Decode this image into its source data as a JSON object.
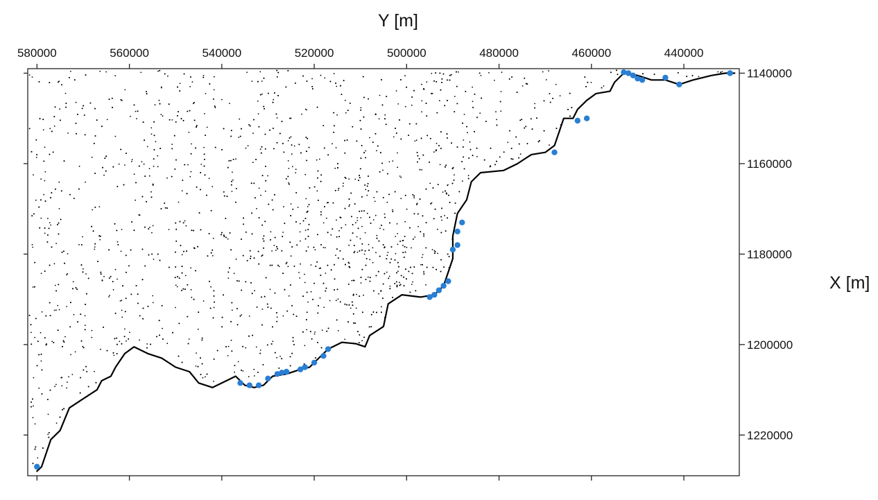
{
  "chart_data": {
    "type": "scatter",
    "title": "",
    "xlabel": "Y [m]",
    "ylabel": "X [m]",
    "x_axis_position": "top",
    "y_axis_position": "right",
    "x_reversed": true,
    "y_reversed": true,
    "xlim": [
      582000,
      428000
    ],
    "ylim": [
      1229000,
      1139000
    ],
    "x_ticks": [
      580000,
      560000,
      540000,
      520000,
      500000,
      480000,
      460000,
      440000
    ],
    "x_tick_labels": [
      "580000",
      "560000",
      "540000",
      "520000",
      "500000",
      "480000",
      "460000",
      "440000"
    ],
    "y_ticks": [
      1140000,
      1160000,
      1180000,
      1200000,
      1220000
    ],
    "y_tick_labels": [
      "1140000",
      "1160000",
      "1180000",
      "1200000",
      "1220000"
    ],
    "grid": false,
    "legend": "none",
    "colors": {
      "mesh_points": "#000000",
      "coastline": "#000000",
      "boundary_nodes": "#2a7fd4",
      "frame": "#222222"
    },
    "mesh_density": "denser near Y 500000, X 1165000-1200000",
    "coastline": {
      "name": "",
      "points": [
        [
          580000,
          1228000
        ],
        [
          579000,
          1227000
        ],
        [
          577000,
          1221000
        ],
        [
          575000,
          1219000
        ],
        [
          573000,
          1214000
        ],
        [
          570000,
          1212000
        ],
        [
          567000,
          1210000
        ],
        [
          566000,
          1208000
        ],
        [
          564000,
          1207000
        ],
        [
          563000,
          1205000
        ],
        [
          561000,
          1202000
        ],
        [
          559000,
          1200500
        ],
        [
          556000,
          1202000
        ],
        [
          553000,
          1203000
        ],
        [
          550000,
          1205000
        ],
        [
          547000,
          1206000
        ],
        [
          545000,
          1208500
        ],
        [
          542000,
          1209500
        ],
        [
          539000,
          1208000
        ],
        [
          537000,
          1207000
        ],
        [
          535000,
          1209000
        ],
        [
          533000,
          1209500
        ],
        [
          531000,
          1209000
        ],
        [
          529000,
          1207000
        ],
        [
          526000,
          1206500
        ],
        [
          523000,
          1205500
        ],
        [
          521000,
          1205000
        ],
        [
          519000,
          1203000
        ],
        [
          517000,
          1201000
        ],
        [
          514000,
          1199500
        ],
        [
          511000,
          1199800
        ],
        [
          509000,
          1200500
        ],
        [
          508000,
          1198000
        ],
        [
          505000,
          1196000
        ],
        [
          504000,
          1191000
        ],
        [
          501000,
          1189000
        ],
        [
          497000,
          1189500
        ],
        [
          494000,
          1189000
        ],
        [
          492000,
          1187000
        ],
        [
          491000,
          1184000
        ],
        [
          490000,
          1181000
        ],
        [
          490000,
          1176000
        ],
        [
          489000,
          1171000
        ],
        [
          487000,
          1168000
        ],
        [
          486000,
          1164000
        ],
        [
          484000,
          1162000
        ],
        [
          479000,
          1161500
        ],
        [
          476000,
          1160000
        ],
        [
          473000,
          1158000
        ],
        [
          470000,
          1157500
        ],
        [
          468000,
          1156000
        ],
        [
          467000,
          1153000
        ],
        [
          466000,
          1150000
        ],
        [
          464000,
          1150000
        ],
        [
          463000,
          1148000
        ],
        [
          461000,
          1146000
        ],
        [
          459000,
          1144500
        ],
        [
          456000,
          1144000
        ],
        [
          455000,
          1142000
        ],
        [
          453000,
          1140000
        ],
        [
          450000,
          1140500
        ],
        [
          447000,
          1141500
        ],
        [
          444000,
          1141500
        ],
        [
          441000,
          1142500
        ],
        [
          438000,
          1141500
        ],
        [
          434000,
          1140500
        ],
        [
          431000,
          1140000
        ],
        [
          429000,
          1140000
        ]
      ]
    },
    "boundary_nodes": [
      [
        580000,
        1227000
      ],
      [
        536000,
        1208500
      ],
      [
        534000,
        1209000
      ],
      [
        532000,
        1209000
      ],
      [
        530000,
        1207500
      ],
      [
        528000,
        1206500
      ],
      [
        527000,
        1206200
      ],
      [
        526000,
        1206000
      ],
      [
        523000,
        1205500
      ],
      [
        522000,
        1205000
      ],
      [
        520000,
        1204000
      ],
      [
        518000,
        1202500
      ],
      [
        517000,
        1201000
      ],
      [
        495000,
        1189500
      ],
      [
        494000,
        1189000
      ],
      [
        493000,
        1188000
      ],
      [
        492000,
        1187000
      ],
      [
        491000,
        1186000
      ],
      [
        490000,
        1179000
      ],
      [
        489000,
        1178000
      ],
      [
        489000,
        1175000
      ],
      [
        488000,
        1173000
      ],
      [
        468000,
        1157500
      ],
      [
        463000,
        1150500
      ],
      [
        461000,
        1150000
      ],
      [
        453000,
        1139800
      ],
      [
        452000,
        1140000
      ],
      [
        451000,
        1140500
      ],
      [
        450000,
        1141200
      ],
      [
        449000,
        1141500
      ],
      [
        444000,
        1141000
      ],
      [
        441000,
        1142500
      ],
      [
        430000,
        1140000
      ]
    ]
  }
}
